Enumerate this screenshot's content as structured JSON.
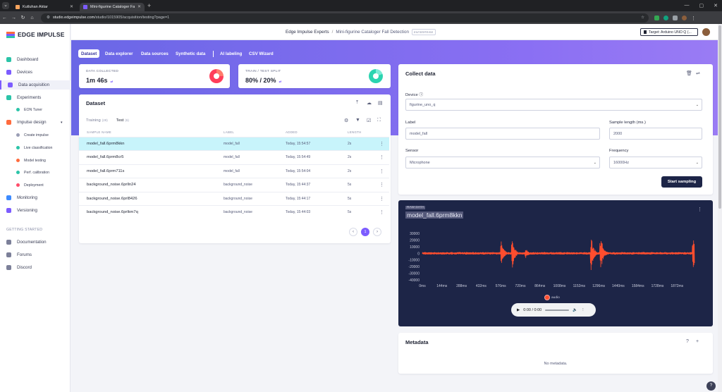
{
  "browser": {
    "tabs": [
      {
        "title": "Kutluhan Aktar",
        "active": false
      },
      {
        "title": "Mini-figurine Cataloger Fall De",
        "active": true
      }
    ],
    "url_host": "studio.edgeimpulse.com",
    "url_path": "/studio/1015905/acquisition/testing?page=1"
  },
  "sidebar": {
    "logo_text": "EDGE IMPULSE",
    "items": [
      {
        "label": "Dashboard",
        "icon": "dashboard-icon",
        "color": "#2bc4a8"
      },
      {
        "label": "Devices",
        "icon": "devices-icon",
        "color": "#7c5cff"
      },
      {
        "label": "Data acquisition",
        "icon": "data-acquisition-icon",
        "color": "#7c5cff"
      },
      {
        "label": "Experiments",
        "icon": "experiments-icon",
        "color": "#2bc4a8"
      },
      {
        "label": "EON Tuner",
        "icon": "eon-tuner-icon",
        "color": "#2bc4a8"
      },
      {
        "label": "Impulse design",
        "icon": "impulse-design-icon",
        "color": "#ff6b3d"
      },
      {
        "label": "Create impulse",
        "icon": "create-impulse-icon",
        "color": "#9a9eb5"
      },
      {
        "label": "Live classification",
        "icon": "live-classification-icon",
        "color": "#2bc4a8"
      },
      {
        "label": "Model testing",
        "icon": "model-testing-icon",
        "color": "#ff6b3d"
      },
      {
        "label": "Perf. calibration",
        "icon": "perf-calibration-icon",
        "color": "#2bc4a8"
      },
      {
        "label": "Deployment",
        "icon": "deployment-icon",
        "color": "#ff4d6a"
      },
      {
        "label": "Monitoring",
        "icon": "monitoring-icon",
        "color": "#3d8bff"
      },
      {
        "label": "Versioning",
        "icon": "versioning-icon",
        "color": "#7c5cff"
      }
    ],
    "getting_started_heading": "GETTING STARTED",
    "help_items": [
      {
        "label": "Documentation",
        "icon": "documentation-icon"
      },
      {
        "label": "Forums",
        "icon": "forums-icon"
      },
      {
        "label": "Discord",
        "icon": "discord-icon"
      }
    ]
  },
  "topbar": {
    "org": "Edge Impulse Experts",
    "separator": "/",
    "project": "Mini-figurine Cataloger Fall Detection",
    "tier_badge": "ENTERPRISE",
    "target": "Target: Arduino UNO Q (..."
  },
  "subnav": [
    "Dataset",
    "Data explorer",
    "Data sources",
    "Synthetic data",
    "AI labeling",
    "CSV Wizard"
  ],
  "stats": {
    "collected_label": "DATA COLLECTED",
    "collected_value": "1m 46s",
    "split_label": "TRAIN / TEST SPLIT",
    "split_value": "80% / 20%",
    "accent_red": "#ff3d5a",
    "accent_teal": "#2bd4b0"
  },
  "dataset": {
    "title": "Dataset",
    "tab_training": "Training",
    "training_count": "(29)",
    "tab_test": "Test",
    "test_count": "(6)",
    "columns": [
      "SAMPLE NAME",
      "LABEL",
      "ADDED",
      "LENGTH"
    ],
    "rows": [
      {
        "name": "model_fall.6prm8kkn",
        "label": "model_fall",
        "added": "Today, 15:54:57",
        "length": "2s"
      },
      {
        "name": "model_fall.6prm8cr5",
        "label": "model_fall",
        "added": "Today, 15:54:49",
        "length": "2s"
      },
      {
        "name": "model_fall.6prm711s",
        "label": "model_fall",
        "added": "Today, 15:54:04",
        "length": "2s"
      },
      {
        "name": "background_noise.6prlln24",
        "label": "background_noise",
        "added": "Today, 15:44:37",
        "length": "5s"
      },
      {
        "name": "background_noise.6prl8426",
        "label": "background_noise",
        "added": "Today, 15:44:17",
        "length": "5s"
      },
      {
        "name": "background_noise.6prlkm7q",
        "label": "background_noise",
        "added": "Today, 15:44:03",
        "length": "5s"
      }
    ],
    "page": "1"
  },
  "collect": {
    "title": "Collect data",
    "device_label": "Device",
    "device_value": "figurine_uno_q",
    "label_label": "Label",
    "label_value": "model_fall",
    "length_label": "Sample length (ms.)",
    "length_value": "2000",
    "sensor_label": "Sensor",
    "sensor_value": "Microphone",
    "freq_label": "Frequency",
    "freq_value": "16000Hz",
    "start_button": "Start sampling"
  },
  "raw": {
    "tag": "RAW DATA",
    "sample_name": "model_fall.6prm8kkn",
    "legend": "audio",
    "player_time": "0:00 / 0:00"
  },
  "chart_data": {
    "type": "line",
    "series": [
      {
        "name": "audio",
        "color": "#ff4d2e"
      }
    ],
    "x_ticks": [
      "0ms",
      "144ms",
      "288ms",
      "432ms",
      "576ms",
      "720ms",
      "864ms",
      "1008ms",
      "1152ms",
      "1296ms",
      "1440ms",
      "1584ms",
      "1728ms",
      "1872ms"
    ],
    "y_ticks": [
      "30000",
      "20000",
      "10000",
      "0",
      "-10000",
      "-20000",
      "-30000",
      "-40000"
    ],
    "ylim": [
      -40000,
      30000
    ],
    "xlim": [
      0,
      2000
    ],
    "bursts": [
      {
        "t": 20,
        "amp": 2500
      },
      {
        "t": 580,
        "amp": 20000
      },
      {
        "t": 660,
        "amp": 26000
      },
      {
        "t": 760,
        "amp": 9000
      },
      {
        "t": 1240,
        "amp": 28000
      },
      {
        "t": 1310,
        "amp": 32000
      },
      {
        "t": 1990,
        "amp": 30000
      }
    ]
  },
  "metadata": {
    "title": "Metadata",
    "empty": "No metadata."
  }
}
